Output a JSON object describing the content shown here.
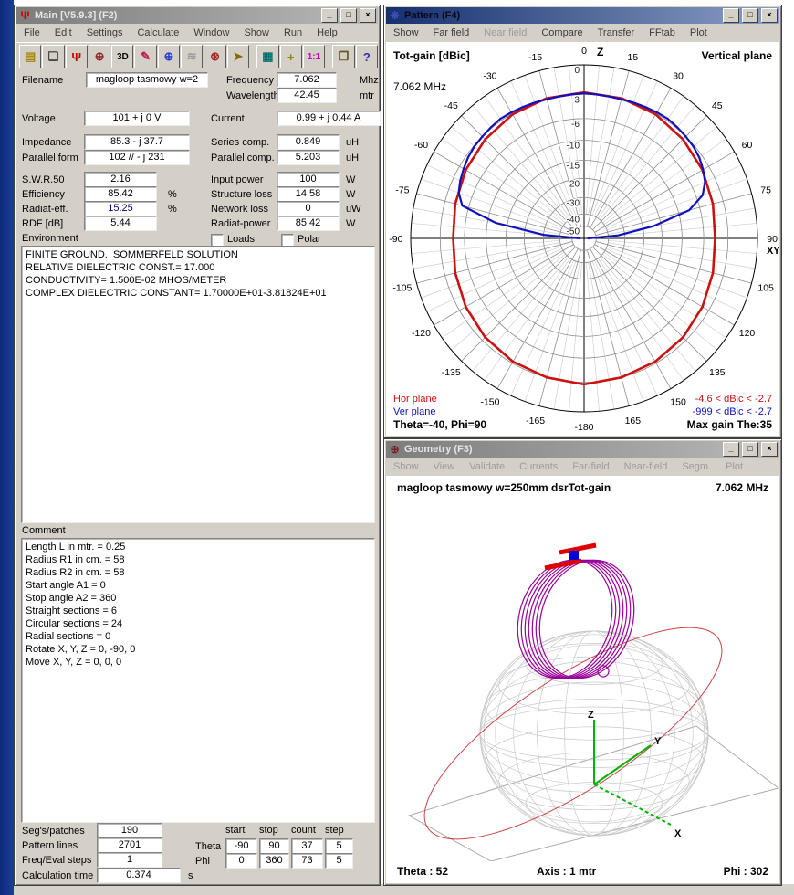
{
  "window_controls": {
    "minimize": "_",
    "maximize": "□",
    "close": "×"
  },
  "main_window": {
    "title": "Main [V5.9.3]  (F2)",
    "menu": [
      {
        "label": "File"
      },
      {
        "label": "Edit"
      },
      {
        "label": "Settings"
      },
      {
        "label": "Calculate"
      },
      {
        "label": "Window"
      },
      {
        "label": "Show"
      },
      {
        "label": "Run"
      },
      {
        "label": "Help"
      }
    ],
    "toolbar": [
      {
        "name": "open-file-icon",
        "glyph": "▤",
        "color": "#a98500"
      },
      {
        "name": "save-files-icon",
        "glyph": "❏",
        "color": "#333333"
      },
      {
        "name": "antenna-icon",
        "glyph": "Ψ",
        "color": "#cc0000"
      },
      {
        "name": "geometry-icon",
        "glyph": "⊕",
        "color": "#8a2a2a"
      },
      {
        "name": "3d-view-icon",
        "glyph": "3D",
        "color": "#000000"
      },
      {
        "name": "edit-nec-icon",
        "glyph": "✎",
        "color": "#c02050"
      },
      {
        "name": "pattern-icon",
        "glyph": "⊕",
        "color": "#2a3ecc"
      },
      {
        "name": "near-field-icon",
        "glyph": "≋",
        "color": "#9a9a9a"
      },
      {
        "name": "far-field-icon",
        "glyph": "⊛",
        "color": "#aa2222"
      },
      {
        "name": "run-nec-icon",
        "glyph": "➤",
        "color": "#8a6a00"
      },
      {
        "name": "separator",
        "glyph": "",
        "color": ""
      },
      {
        "name": "calculator-icon",
        "glyph": "▦",
        "color": "#007070"
      },
      {
        "name": "move-center-icon",
        "glyph": "+",
        "color": "#8a8a00"
      },
      {
        "name": "one-to-one-icon",
        "glyph": "1:1",
        "color": "#cc00cc"
      },
      {
        "name": "separator",
        "glyph": "",
        "color": ""
      },
      {
        "name": "book-icon",
        "glyph": "❒",
        "color": "#665522"
      },
      {
        "name": "help-icon",
        "glyph": "?",
        "color": "#3333aa"
      }
    ],
    "fields": {
      "filename": {
        "label": "Filename",
        "value": "magloop tasmowy w=2"
      },
      "frequency": {
        "label": "Frequency",
        "value": "7.062",
        "unit": "Mhz"
      },
      "wavelength": {
        "label": "Wavelength",
        "value": "42.45",
        "unit": "mtr"
      },
      "voltage": {
        "label": "Voltage",
        "value": "101 + j 0 V"
      },
      "current": {
        "label": "Current",
        "value": "0.99 + j 0.44 A"
      },
      "impedance": {
        "label": "Impedance",
        "value": "85.3 - j 37.7"
      },
      "series_comp": {
        "label": "Series comp.",
        "value": "0.849",
        "unit": "uH"
      },
      "parallel_form": {
        "label": "Parallel form",
        "value": "102 // - j 231"
      },
      "parallel_comp": {
        "label": "Parallel comp.",
        "value": "5.203",
        "unit": "uH"
      },
      "swr50": {
        "label": "S.W.R.50",
        "value": "2.16"
      },
      "input_power": {
        "label": "Input power",
        "value": "100",
        "unit": "W"
      },
      "efficiency": {
        "label": "Efficiency",
        "value": "85.42",
        "unit": "%"
      },
      "structure_loss": {
        "label": "Structure loss",
        "value": "14.58",
        "unit": "W"
      },
      "radiat_eff": {
        "label": "Radiat-eff.",
        "value": "15.25",
        "unit": "%",
        "navy": true
      },
      "network_loss": {
        "label": "Network loss",
        "value": "0",
        "unit": "uW"
      },
      "rdf": {
        "label": "RDF [dB]",
        "value": "5.44"
      },
      "radiat_power": {
        "label": "Radiat-power",
        "value": "85.42",
        "unit": "W"
      }
    },
    "environment": {
      "label": "Environment",
      "loads_label": "Loads",
      "polar_label": "Polar",
      "lines": [
        "FINITE GROUND.  SOMMERFELD SOLUTION",
        "RELATIVE DIELECTRIC CONST.= 17.000",
        "CONDUCTIVITY= 1.500E-02 MHOS/METER",
        "COMPLEX DIELECTRIC CONSTANT= 1.70000E+01-3.81824E+01"
      ]
    },
    "comment": {
      "label": "Comment",
      "lines": [
        "Length L in mtr. = 0.25",
        "Radius R1 in cm. = 58",
        "Radius R2 in cm. = 58",
        "Start angle A1 = 0",
        "Stop angle A2 = 360",
        "Straight sections = 6",
        "Circular sections = 24",
        "Radial sections = 0",
        "Rotate X, Y, Z = 0, -90, 0",
        "Move X, Y, Z = 0, 0, 0"
      ]
    },
    "stats": {
      "segs": {
        "label": "Seg's/patches",
        "value": "190"
      },
      "pattern": {
        "label": "Pattern lines",
        "value": "2701"
      },
      "freqsteps": {
        "label": "Freq/Eval steps",
        "value": "1"
      },
      "calctime": {
        "label": "Calculation time",
        "value": "0.374",
        "unit": "s"
      }
    },
    "sweep": {
      "headers": [
        "start",
        "stop",
        "count",
        "step"
      ],
      "theta": {
        "label": "Theta",
        "values": [
          "-90",
          "90",
          "37",
          "5"
        ]
      },
      "phi": {
        "label": "Phi",
        "values": [
          "0",
          "360",
          "73",
          "5"
        ]
      }
    }
  },
  "pattern_window": {
    "title": "Pattern  (F4)",
    "menu": [
      {
        "label": "Show"
      },
      {
        "label": "Far field"
      },
      {
        "label": "Near field",
        "disabled": true
      },
      {
        "label": "Compare"
      },
      {
        "label": "Transfer"
      },
      {
        "label": "FFtab"
      },
      {
        "label": "Plot"
      }
    ],
    "corner_title": "Tot-gain [dBic]",
    "frequency": "7.062 MHz",
    "plane": "Vertical plane",
    "legend": {
      "hor_label": "Hor plane",
      "hor_range": "-4.6 < dBic < -2.7",
      "ver_label": "Ver plane",
      "ver_range": "-999 < dBic < -2.7",
      "footer_left": "Theta=-40, Phi=90",
      "footer_right": "Max gain The:35"
    }
  },
  "geometry_window": {
    "title": "Geometry  (F3)",
    "menu": [
      {
        "label": "Show",
        "disabled": true
      },
      {
        "label": "View",
        "disabled": true
      },
      {
        "label": "Validate",
        "disabled": true
      },
      {
        "label": "Currents",
        "disabled": true
      },
      {
        "label": "Far-field",
        "disabled": true
      },
      {
        "label": "Near-field",
        "disabled": true
      },
      {
        "label": "Segm.",
        "disabled": true
      },
      {
        "label": "Plot",
        "disabled": true
      }
    ],
    "header_title": "magloop tasmowy w=250mm dsrTot-gain",
    "frequency": "7.062 MHz",
    "axis_labels": {
      "x": "X",
      "y": "Y",
      "z": "Z"
    },
    "footer": {
      "theta": "Theta : 52",
      "axis": "Axis : 1 mtr",
      "phi": "Phi : 302"
    }
  },
  "chart_data": {
    "type": "polar",
    "title": "Tot-gain [dBic]",
    "subtitle": "7.062 MHz",
    "plane": "Vertical plane",
    "ring_labels_db": [
      0,
      -3,
      -6,
      -10,
      -15,
      -20,
      -30,
      -40,
      -50
    ],
    "angle_min": -180,
    "angle_max": 180,
    "angle_step": 15,
    "axis_top_label": "Z",
    "axis_right_label": "XY",
    "series": [
      {
        "name": "Hor plane",
        "color": "#cc1111",
        "closed": true,
        "range_text": "-4.6 < dBic < -2.7",
        "theta": [
          -180,
          -165,
          -150,
          -135,
          -120,
          -105,
          -90,
          -75,
          -60,
          -45,
          -30,
          -15,
          0,
          15,
          30,
          45,
          60,
          75,
          90,
          105,
          120,
          135,
          150,
          165,
          180
        ],
        "db": [
          -2.8,
          -3.0,
          -3.2,
          -3.5,
          -3.9,
          -4.3,
          -4.6,
          -4.3,
          -3.9,
          -3.5,
          -3.1,
          -2.9,
          -2.8,
          -2.9,
          -3.1,
          -3.5,
          -3.9,
          -4.3,
          -4.6,
          -4.3,
          -3.9,
          -3.5,
          -3.2,
          -3.0,
          -2.8
        ]
      },
      {
        "name": "Ver plane",
        "color": "#1111bb",
        "closed": false,
        "range_text": "-999 < dBic < -2.7",
        "theta": [
          -90,
          -85,
          -80,
          -75,
          -70,
          -65,
          -60,
          -55,
          -50,
          -45,
          -40,
          -35,
          -30,
          -25,
          -20,
          -15,
          -10,
          -5,
          0,
          5,
          10,
          15,
          20,
          25,
          30,
          35,
          40,
          45,
          50,
          55,
          60,
          65,
          70,
          75,
          80,
          85,
          90
        ],
        "db": [
          -55,
          -30,
          -12,
          -5.2,
          -4.3,
          -3.9,
          -3.6,
          -3.3,
          -3.1,
          -3.0,
          -2.9,
          -2.8,
          -2.85,
          -2.9,
          -2.95,
          -3.0,
          -3.0,
          -2.95,
          -2.9,
          -2.95,
          -3.0,
          -3.0,
          -2.95,
          -2.9,
          -2.85,
          -2.8,
          -2.9,
          -3.0,
          -3.15,
          -3.4,
          -3.8,
          -4.3,
          -5.2,
          -8.0,
          -17,
          -34,
          -55
        ]
      }
    ],
    "max_gain_note": "Max gain The:35",
    "cursor_note": "Theta=-40, Phi=90"
  }
}
